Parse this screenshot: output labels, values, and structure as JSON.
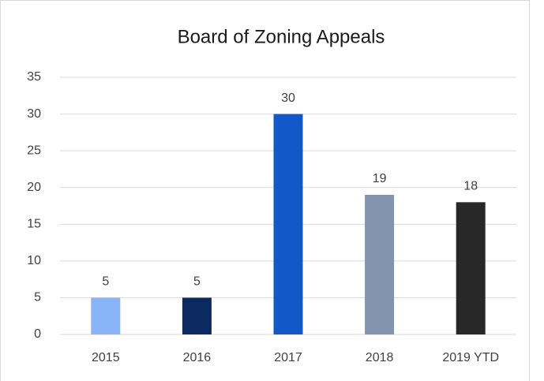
{
  "chart_data": {
    "type": "bar",
    "title": "Board of Zoning Appeals",
    "categories": [
      "2015",
      "2016",
      "2017",
      "2018",
      "2019 YTD"
    ],
    "values": [
      5,
      5,
      30,
      19,
      18
    ],
    "colors": [
      "#8ab4f8",
      "#0b2b60",
      "#1258c9",
      "#8394ae",
      "#282828"
    ],
    "ylim": [
      0,
      35
    ],
    "yticks": [
      0,
      5,
      10,
      15,
      20,
      25,
      30,
      35
    ],
    "grid": true
  }
}
